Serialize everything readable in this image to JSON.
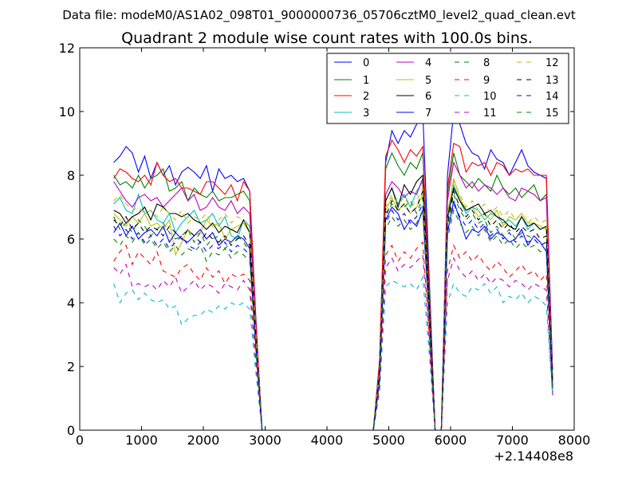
{
  "chart_data": {
    "type": "line",
    "suptitle": "Data file: modeM0/AS1A02_098T01_9000000736_05706cztM0_level2_quad_clean.evt",
    "title": "Quadrant 2 module wise count rates with 100.0s bins.",
    "xlabel": "",
    "ylabel": "",
    "x_offset_label": "+2.14408e8",
    "xlim": [
      0,
      8000
    ],
    "ylim": [
      0,
      12
    ],
    "xticks": [
      "0",
      "1000",
      "2000",
      "3000",
      "4000",
      "5000",
      "6000",
      "7000",
      "8000"
    ],
    "yticks": [
      "0",
      "2",
      "4",
      "6",
      "8",
      "10",
      "12"
    ],
    "legend_position": "top-right",
    "x": [
      550,
      650,
      750,
      850,
      950,
      1050,
      1150,
      1250,
      1350,
      1450,
      1550,
      1650,
      1750,
      1850,
      1950,
      2050,
      2150,
      2250,
      2350,
      2450,
      2550,
      2650,
      2750,
      2850,
      2950,
      3050,
      3250,
      3550,
      3850,
      4150,
      4450,
      4750,
      4850,
      4950,
      5050,
      5150,
      5250,
      5350,
      5450,
      5550,
      5650,
      5750,
      5850,
      5950,
      6050,
      6150,
      6250,
      6350,
      6450,
      6550,
      6650,
      6750,
      6850,
      6950,
      7050,
      7150,
      7250,
      7350,
      7450,
      7550,
      7650
    ],
    "series": [
      {
        "name": "0",
        "color": "#0000ff",
        "dash": "solid",
        "values": [
          8.4,
          8.6,
          8.9,
          8.7,
          8.1,
          8.6,
          7.9,
          8.4,
          8.0,
          8.3,
          7.7,
          8.1,
          8.25,
          8.1,
          7.9,
          8.3,
          7.5,
          8.2,
          7.9,
          8.0,
          7.8,
          7.9,
          7.5,
          3.5,
          0,
          0,
          0,
          0,
          0,
          0,
          0,
          0,
          2.0,
          8.4,
          9.4,
          9.0,
          9.4,
          9.2,
          9.6,
          10.0,
          5.0,
          0,
          0,
          8.0,
          10.0,
          9.6,
          9.0,
          8.7,
          8.6,
          8.2,
          8.8,
          8.5,
          8.4,
          8.0,
          8.4,
          8.8,
          8.3,
          8.1,
          8.0,
          7.9,
          1.9
        ]
      },
      {
        "name": "1",
        "color": "#008000",
        "dash": "solid",
        "values": [
          8.0,
          7.7,
          7.8,
          7.6,
          8.0,
          7.6,
          7.9,
          8.0,
          8.2,
          7.5,
          7.6,
          7.8,
          7.2,
          7.6,
          7.4,
          7.3,
          7.5,
          7.2,
          7.3,
          7.3,
          7.4,
          7.5,
          7.2,
          3.3,
          0,
          0,
          0,
          0,
          0,
          0,
          0,
          0,
          2.2,
          8.2,
          8.7,
          8.3,
          8.0,
          8.4,
          8.2,
          8.7,
          4.8,
          0,
          0,
          7.4,
          8.7,
          8.0,
          7.8,
          7.6,
          7.9,
          7.7,
          7.5,
          8.0,
          7.6,
          7.4,
          7.6,
          7.3,
          7.5,
          7.7,
          7.2,
          7.4,
          1.6
        ]
      },
      {
        "name": "2",
        "color": "#ff0000",
        "dash": "solid",
        "values": [
          7.9,
          8.2,
          8.1,
          7.9,
          7.8,
          8.0,
          7.7,
          8.4,
          8.0,
          7.8,
          7.9,
          7.6,
          7.6,
          7.5,
          7.4,
          7.8,
          7.8,
          7.6,
          7.4,
          7.7,
          7.2,
          7.8,
          7.5,
          3.4,
          0,
          0,
          0,
          0,
          0,
          0,
          0,
          0,
          2.1,
          8.6,
          9.1,
          8.8,
          8.4,
          8.8,
          8.6,
          8.9,
          4.6,
          0,
          0,
          7.6,
          9.0,
          8.9,
          8.1,
          8.4,
          8.3,
          8.4,
          8.0,
          8.4,
          8.3,
          8.0,
          8.2,
          8.1,
          8.2,
          8.0,
          8.0,
          8.0,
          1.5
        ]
      },
      {
        "name": "3",
        "color": "#00bfbf",
        "dash": "solid",
        "values": [
          7.1,
          7.3,
          6.9,
          6.8,
          7.4,
          6.8,
          6.9,
          6.6,
          6.5,
          6.8,
          6.2,
          6.5,
          6.7,
          6.9,
          6.5,
          6.6,
          6.8,
          6.4,
          6.7,
          6.1,
          6.0,
          6.6,
          6.4,
          2.8,
          0,
          0,
          0,
          0,
          0,
          0,
          0,
          0,
          1.8,
          7.2,
          7.6,
          7.1,
          7.4,
          7.0,
          7.5,
          7.8,
          4.0,
          0,
          0,
          6.5,
          7.7,
          7.2,
          6.8,
          7.0,
          6.9,
          6.6,
          6.8,
          6.7,
          6.5,
          6.6,
          6.4,
          6.7,
          6.3,
          6.5,
          6.3,
          6.4,
          1.3
        ]
      },
      {
        "name": "4",
        "color": "#bf00bf",
        "dash": "solid",
        "values": [
          7.8,
          7.5,
          7.2,
          7.0,
          7.3,
          7.4,
          7.2,
          7.3,
          7.0,
          7.2,
          7.4,
          7.6,
          7.2,
          7.4,
          6.9,
          7.0,
          7.3,
          7.0,
          6.9,
          7.2,
          6.8,
          7.0,
          6.8,
          3.1,
          0,
          0,
          0,
          0,
          0,
          0,
          0,
          0,
          1.9,
          7.4,
          7.8,
          7.6,
          7.3,
          7.5,
          7.4,
          7.9,
          4.3,
          0,
          0,
          7.2,
          8.4,
          8.0,
          7.6,
          7.8,
          7.5,
          7.7,
          7.6,
          7.4,
          7.6,
          7.3,
          7.2,
          7.6,
          7.5,
          7.4,
          7.2,
          7.3,
          1.6
        ]
      },
      {
        "name": "5",
        "color": "#bfbf00",
        "dash": "solid",
        "values": [
          6.8,
          6.6,
          6.4,
          6.7,
          6.5,
          6.8,
          6.4,
          6.5,
          6.3,
          6.6,
          5.5,
          5.9,
          6.3,
          6.1,
          6.2,
          6.6,
          6.4,
          6.5,
          6.0,
          6.3,
          6.4,
          6.5,
          6.2,
          2.9,
          0,
          0,
          0,
          0,
          0,
          0,
          0,
          0,
          1.7,
          6.9,
          7.3,
          6.9,
          7.1,
          6.8,
          7.0,
          7.4,
          3.9,
          0,
          0,
          6.8,
          7.9,
          7.3,
          6.9,
          7.0,
          6.7,
          6.8,
          6.6,
          6.9,
          6.4,
          6.7,
          6.6,
          6.8,
          6.5,
          6.5,
          6.4,
          6.3,
          1.4
        ]
      },
      {
        "name": "6",
        "color": "#000000",
        "dash": "solid",
        "values": [
          6.9,
          6.8,
          6.5,
          6.7,
          6.8,
          7.0,
          6.6,
          7.1,
          7.0,
          6.8,
          6.8,
          6.7,
          6.8,
          6.6,
          6.5,
          6.3,
          6.5,
          6.2,
          6.4,
          6.3,
          6.2,
          6.6,
          6.2,
          2.9,
          0,
          0,
          0,
          0,
          0,
          0,
          0,
          0,
          1.8,
          7.2,
          7.6,
          7.0,
          7.7,
          7.4,
          7.8,
          8.0,
          4.1,
          0,
          0,
          6.7,
          7.6,
          7.2,
          6.9,
          7.0,
          7.1,
          6.8,
          6.9,
          6.7,
          6.6,
          6.4,
          6.3,
          6.7,
          6.4,
          6.5,
          6.3,
          6.4,
          1.5
        ]
      },
      {
        "name": "7",
        "color": "#0000ff",
        "dash": "solid",
        "values": [
          6.2,
          6.5,
          6.1,
          6.4,
          6.0,
          6.2,
          6.3,
          6.1,
          6.4,
          5.9,
          6.2,
          6.0,
          5.9,
          6.1,
          6.3,
          6.0,
          6.2,
          5.8,
          6.0,
          5.9,
          6.1,
          6.0,
          5.7,
          2.6,
          0,
          0,
          0,
          0,
          0,
          0,
          0,
          0,
          1.6,
          6.6,
          7.0,
          6.8,
          6.3,
          6.6,
          6.4,
          6.9,
          3.6,
          0,
          0,
          6.2,
          7.2,
          6.6,
          6.0,
          6.3,
          6.2,
          6.4,
          6.0,
          6.2,
          6.1,
          5.9,
          6.0,
          6.3,
          5.8,
          6.1,
          5.9,
          5.6,
          1.3
        ]
      },
      {
        "name": "8",
        "color": "#008000",
        "dash": "dashed",
        "values": [
          6.7,
          6.3,
          6.5,
          6.2,
          6.6,
          6.4,
          6.1,
          6.3,
          6.5,
          6.2,
          6.0,
          6.1,
          6.3,
          5.9,
          6.2,
          5.8,
          6.0,
          6.1,
          5.7,
          5.9,
          6.1,
          5.9,
          5.6,
          2.7,
          0,
          0,
          0,
          0,
          0,
          0,
          0,
          0,
          1.7,
          6.8,
          7.1,
          6.9,
          7.0,
          7.2,
          6.8,
          7.3,
          3.7,
          0,
          0,
          6.4,
          7.4,
          6.9,
          6.6,
          6.8,
          6.5,
          6.6,
          6.2,
          6.4,
          6.1,
          6.3,
          6.0,
          6.2,
          6.1,
          6.0,
          5.8,
          5.9,
          1.4
        ]
      },
      {
        "name": "9",
        "color": "#ff0000",
        "dash": "dashed",
        "values": [
          5.3,
          5.6,
          5.8,
          5.2,
          5.6,
          5.4,
          5.2,
          5.6,
          5.0,
          4.9,
          4.8,
          5.1,
          5.2,
          4.9,
          4.7,
          5.1,
          4.8,
          5.0,
          4.6,
          4.9,
          4.8,
          4.9,
          4.7,
          2.3,
          0,
          0,
          0,
          0,
          0,
          0,
          0,
          0,
          1.4,
          5.5,
          5.8,
          5.3,
          5.6,
          5.4,
          5.7,
          5.9,
          3.1,
          0,
          0,
          5.0,
          5.8,
          5.4,
          5.6,
          5.3,
          5.5,
          5.2,
          5.0,
          5.3,
          5.1,
          4.8,
          5.0,
          5.2,
          4.9,
          5.0,
          4.7,
          4.9,
          1.2
        ]
      },
      {
        "name": "10",
        "color": "#00bfbf",
        "dash": "dashed",
        "values": [
          4.6,
          4.0,
          4.3,
          4.4,
          4.1,
          4.3,
          4.1,
          4.0,
          4.1,
          3.8,
          3.9,
          3.3,
          3.5,
          3.6,
          3.6,
          3.8,
          3.7,
          3.9,
          3.8,
          4.0,
          3.9,
          4.0,
          3.8,
          1.8,
          0,
          0,
          0,
          0,
          0,
          0,
          0,
          0,
          1.2,
          4.5,
          4.7,
          4.6,
          4.5,
          4.6,
          4.4,
          4.8,
          2.5,
          0,
          0,
          4.0,
          4.6,
          4.3,
          4.2,
          4.5,
          4.4,
          4.6,
          4.3,
          4.5,
          4.0,
          4.2,
          4.1,
          4.3,
          4.0,
          4.2,
          4.1,
          3.9,
          1.1
        ]
      },
      {
        "name": "11",
        "color": "#bf00bf",
        "dash": "dashed",
        "values": [
          5.1,
          4.9,
          5.2,
          4.5,
          4.6,
          4.5,
          4.6,
          4.4,
          4.7,
          4.5,
          4.8,
          4.3,
          4.5,
          4.7,
          4.4,
          4.6,
          4.5,
          4.3,
          4.6,
          4.5,
          4.4,
          4.7,
          4.4,
          2.1,
          0,
          0,
          0,
          0,
          0,
          0,
          0,
          0,
          1.3,
          5.1,
          5.4,
          5.0,
          5.2,
          5.1,
          5.3,
          5.5,
          2.9,
          0,
          0,
          4.7,
          5.4,
          5.0,
          4.8,
          5.0,
          4.7,
          4.9,
          4.6,
          4.8,
          4.7,
          4.5,
          4.7,
          4.6,
          4.4,
          4.6,
          4.5,
          4.4,
          1.1
        ]
      },
      {
        "name": "12",
        "color": "#bfbf00",
        "dash": "dashed",
        "values": [
          7.2,
          7.4,
          7.1,
          6.9,
          7.0,
          6.8,
          6.9,
          6.7,
          7.0,
          6.8,
          6.6,
          6.9,
          6.5,
          6.7,
          6.6,
          6.8,
          6.4,
          6.6,
          6.8,
          6.5,
          6.7,
          6.6,
          6.3,
          3.0,
          0,
          0,
          0,
          0,
          0,
          0,
          0,
          0,
          1.8,
          7.0,
          7.4,
          7.1,
          7.3,
          7.0,
          7.2,
          7.6,
          3.9,
          0,
          0,
          6.8,
          7.8,
          7.4,
          7.0,
          7.2,
          6.9,
          7.1,
          6.8,
          7.0,
          6.7,
          6.9,
          6.6,
          6.8,
          6.5,
          6.7,
          6.5,
          6.6,
          1.5
        ]
      },
      {
        "name": "13",
        "color": "#000000",
        "dash": "dashed",
        "values": [
          6.6,
          6.4,
          6.7,
          6.3,
          6.5,
          6.2,
          6.4,
          6.3,
          6.1,
          6.4,
          6.2,
          6.0,
          6.3,
          6.1,
          5.9,
          6.2,
          6.0,
          5.9,
          6.1,
          5.8,
          6.0,
          6.1,
          5.8,
          2.7,
          0,
          0,
          0,
          0,
          0,
          0,
          0,
          0,
          1.7,
          6.7,
          7.2,
          6.9,
          7.1,
          6.8,
          7.0,
          7.5,
          3.8,
          0,
          0,
          6.5,
          7.5,
          7.0,
          6.7,
          6.9,
          6.6,
          6.8,
          6.4,
          6.6,
          6.3,
          6.5,
          6.2,
          6.4,
          6.2,
          6.3,
          6.0,
          6.1,
          1.4
        ]
      },
      {
        "name": "14",
        "color": "#0000ff",
        "dash": "dashed",
        "values": [
          6.4,
          6.1,
          6.3,
          6.0,
          6.2,
          5.9,
          6.1,
          5.8,
          6.0,
          5.7,
          5.9,
          6.1,
          5.8,
          5.7,
          5.9,
          5.6,
          5.8,
          5.7,
          5.9,
          5.6,
          5.8,
          5.7,
          5.5,
          2.6,
          0,
          0,
          0,
          0,
          0,
          0,
          0,
          0,
          1.6,
          6.5,
          6.9,
          6.6,
          6.8,
          6.5,
          6.7,
          7.1,
          3.6,
          0,
          0,
          6.2,
          7.1,
          6.7,
          6.4,
          6.6,
          6.3,
          6.5,
          6.1,
          6.3,
          6.0,
          6.2,
          5.9,
          6.1,
          5.9,
          6.0,
          5.8,
          5.9,
          1.3
        ]
      },
      {
        "name": "15",
        "color": "#008000",
        "dash": "dashed",
        "values": [
          6.0,
          5.8,
          6.1,
          5.9,
          6.2,
          5.8,
          6.0,
          5.7,
          5.9,
          5.6,
          5.8,
          5.5,
          5.7,
          5.6,
          5.8,
          5.3,
          5.6,
          5.5,
          5.7,
          5.4,
          5.6,
          5.5,
          5.3,
          2.5,
          0,
          0,
          0,
          0,
          0,
          0,
          0,
          0,
          1.5,
          6.3,
          6.7,
          6.4,
          6.6,
          6.3,
          6.5,
          6.9,
          3.5,
          0,
          0,
          6.0,
          6.9,
          6.5,
          6.2,
          6.4,
          6.1,
          6.3,
          5.9,
          6.1,
          5.8,
          6.0,
          5.7,
          5.9,
          5.7,
          5.8,
          5.6,
          5.7,
          1.2
        ]
      }
    ]
  }
}
